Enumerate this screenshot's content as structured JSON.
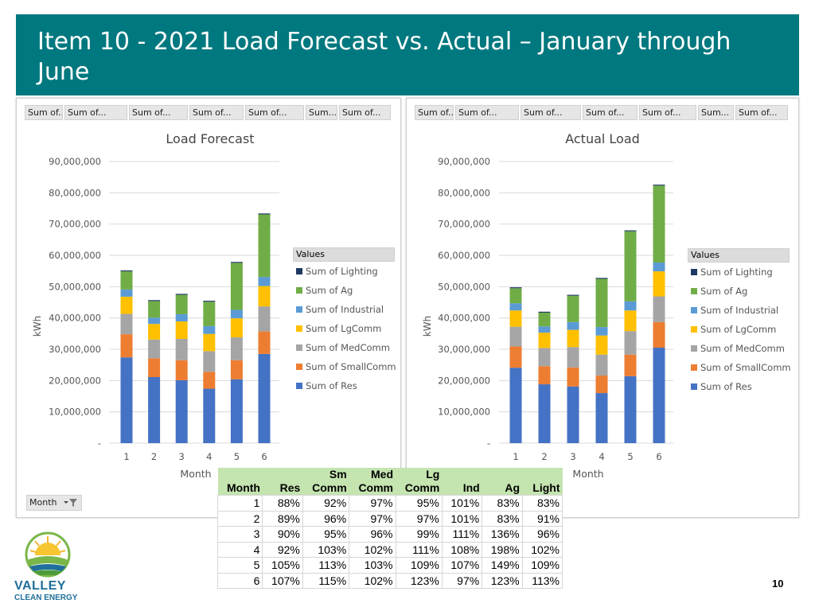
{
  "header": {
    "title": "Item 10 - 2021 Load Forecast vs. Actual – January through June"
  },
  "colors": {
    "header_bg": "#00787f",
    "Lighting": "#1f3864",
    "Ag": "#70ad47",
    "Industrial": "#5b9bd5",
    "LgComm": "#ffc000",
    "MedComm": "#a5a5a5",
    "SmallComm": "#ed7d31",
    "Res": "#4472c4"
  },
  "left_fields": [
    "Sum of...",
    "Sum of...",
    "Sum of...",
    "Sum of...",
    "Sum of...",
    "Sum...",
    "Sum of..."
  ],
  "right_fields": [
    "Sum of...",
    "Sum of...",
    "Sum of...",
    "Sum of...",
    "Sum of...",
    "Sum...",
    "Sum of..."
  ],
  "legend": {
    "title": "Values",
    "items": [
      {
        "key": "Lighting",
        "label": "Sum of Lighting"
      },
      {
        "key": "Ag",
        "label": "Sum of Ag"
      },
      {
        "key": "Industrial",
        "label": "Sum of Industrial"
      },
      {
        "key": "LgComm",
        "label": "Sum of LgComm"
      },
      {
        "key": "MedComm",
        "label": "Sum of MedComm"
      },
      {
        "key": "SmallComm",
        "label": "Sum of SmallComm"
      },
      {
        "key": "Res",
        "label": "Sum of Res"
      }
    ]
  },
  "month_filter": {
    "label": "Month"
  },
  "chart_data": [
    {
      "type": "bar",
      "stacked": true,
      "title": "Load Forecast",
      "xlabel": "Month",
      "ylabel": "kWh",
      "categories": [
        "1",
        "2",
        "3",
        "4",
        "5",
        "6"
      ],
      "ylim": [
        0,
        90000000
      ],
      "yticks": [
        "-",
        "10,000,000",
        "20,000,000",
        "30,000,000",
        "40,000,000",
        "50,000,000",
        "60,000,000",
        "70,000,000",
        "80,000,000",
        "90,000,000"
      ],
      "series": [
        {
          "name": "Res",
          "values": [
            27400000,
            21100000,
            20100000,
            17400000,
            20400000,
            28500000
          ]
        },
        {
          "name": "SmallComm",
          "values": [
            7400000,
            6000000,
            6400000,
            5400000,
            6100000,
            7200000
          ]
        },
        {
          "name": "MedComm",
          "values": [
            6500000,
            6000000,
            6800000,
            6600000,
            7300000,
            8000000
          ]
        },
        {
          "name": "LgComm",
          "values": [
            5500000,
            5000000,
            5600000,
            5500000,
            6100000,
            6500000
          ]
        },
        {
          "name": "Industrial",
          "values": [
            2300000,
            2000000,
            2300000,
            2500000,
            2700000,
            2900000
          ]
        },
        {
          "name": "Ag",
          "values": [
            5800000,
            5300000,
            6200000,
            7800000,
            15000000,
            20000000
          ]
        },
        {
          "name": "Lighting",
          "values": [
            300000,
            300000,
            300000,
            300000,
            300000,
            300000
          ]
        }
      ]
    },
    {
      "type": "bar",
      "stacked": true,
      "title": "Actual Load",
      "xlabel": "Month",
      "ylabel": "kWh",
      "categories": [
        "1",
        "2",
        "3",
        "4",
        "5",
        "6"
      ],
      "ylim": [
        0,
        90000000
      ],
      "yticks": [
        "-",
        "10,000,000",
        "20,000,000",
        "30,000,000",
        "40,000,000",
        "50,000,000",
        "60,000,000",
        "70,000,000",
        "80,000,000",
        "90,000,000"
      ],
      "series": [
        {
          "name": "Res",
          "values": [
            24100000,
            18800000,
            18100000,
            16000000,
            21400000,
            30500000
          ]
        },
        {
          "name": "SmallComm",
          "values": [
            6800000,
            5800000,
            6100000,
            5600000,
            6900000,
            8200000
          ]
        },
        {
          "name": "MedComm",
          "values": [
            6300000,
            5800000,
            6500000,
            6700000,
            7500000,
            8200000
          ]
        },
        {
          "name": "LgComm",
          "values": [
            5200000,
            4900000,
            5500000,
            6100000,
            6600000,
            8000000
          ]
        },
        {
          "name": "Industrial",
          "values": [
            2300000,
            2000000,
            2500000,
            2700000,
            2900000,
            2800000
          ]
        },
        {
          "name": "Ag",
          "values": [
            4800000,
            4400000,
            8400000,
            15400000,
            22400000,
            24600000
          ]
        },
        {
          "name": "Lighting",
          "values": [
            300000,
            300000,
            300000,
            300000,
            300000,
            300000
          ]
        }
      ]
    }
  ],
  "ratio_table": {
    "headers": [
      {
        "top": "",
        "bottom": "Month"
      },
      {
        "top": "",
        "bottom": "Res"
      },
      {
        "top": "Sm",
        "bottom": "Comm"
      },
      {
        "top": "Med",
        "bottom": "Comm"
      },
      {
        "top": "Lg",
        "bottom": "Comm"
      },
      {
        "top": "",
        "bottom": "Ind"
      },
      {
        "top": "",
        "bottom": "Ag"
      },
      {
        "top": "",
        "bottom": "Light"
      }
    ],
    "rows": [
      [
        "1",
        "88%",
        "92%",
        "97%",
        "95%",
        "101%",
        "83%",
        "83%"
      ],
      [
        "2",
        "89%",
        "96%",
        "97%",
        "97%",
        "101%",
        "83%",
        "91%"
      ],
      [
        "3",
        "90%",
        "95%",
        "96%",
        "99%",
        "111%",
        "136%",
        "96%"
      ],
      [
        "4",
        "92%",
        "103%",
        "102%",
        "111%",
        "108%",
        "198%",
        "102%"
      ],
      [
        "5",
        "105%",
        "113%",
        "103%",
        "109%",
        "107%",
        "149%",
        "109%"
      ],
      [
        "6",
        "107%",
        "115%",
        "102%",
        "123%",
        "97%",
        "123%",
        "113%"
      ]
    ]
  },
  "logo": {
    "line1": "VALLEY",
    "line2": "CLEAN ENERGY"
  },
  "page_number": "10"
}
